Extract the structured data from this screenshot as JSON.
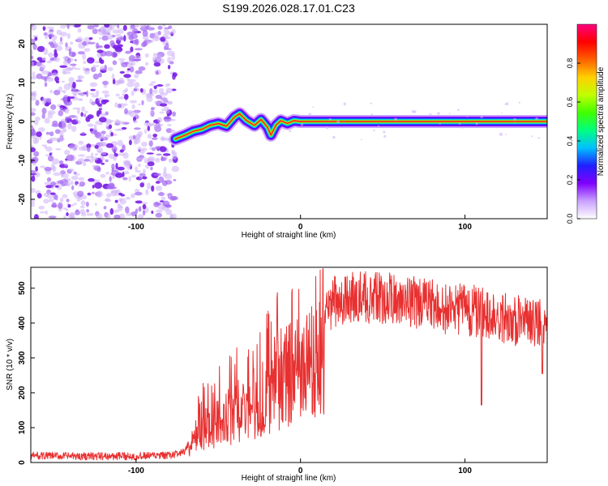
{
  "chart_data": [
    {
      "type": "heatmap",
      "title": "S199.2026.028.17.01.C23",
      "xlabel": "Height of straight line (km)",
      "ylabel": "Frequency (Hz)",
      "xlim": [
        -164,
        150
      ],
      "ylim": [
        -25,
        25
      ],
      "xticks": [
        -100,
        0,
        100
      ],
      "xtick_labels": [
        "-100",
        "0",
        "100"
      ],
      "yticks": [
        -20,
        -10,
        0,
        10,
        20
      ],
      "ytick_labels": [
        "-20",
        "-10",
        "0",
        "10",
        "20"
      ],
      "grid": false,
      "colorbar": {
        "label": "Normalized spectral amplitude",
        "range": [
          0,
          1
        ],
        "ticks": [
          0.0,
          0.2,
          0.4,
          0.6,
          0.8
        ],
        "tick_labels": [
          "0.0",
          "0.2",
          "0.4",
          "0.6",
          "0.8"
        ],
        "colors": [
          "#ffffff",
          "#c9a0ff",
          "#8000ff",
          "#2020ff",
          "#00c0ff",
          "#00ff80",
          "#40ff00",
          "#c0ff00",
          "#ffd000",
          "#ff6000",
          "#ff0000",
          "#ff0080"
        ]
      },
      "noise_region_x": [
        -164,
        -76
      ],
      "ridge_trace": {
        "x": [
          -76,
          -70,
          -65,
          -60,
          -55,
          -50,
          -45,
          -40,
          -37,
          -33,
          -28,
          -24,
          -20,
          -18,
          -15,
          -12,
          -8,
          -4,
          0,
          150
        ],
        "y": [
          -4.5,
          -3.5,
          -2.5,
          -2.0,
          -1.0,
          -0.5,
          -1.2,
          1.2,
          2.0,
          0.3,
          -1.0,
          0.5,
          -1.5,
          -3.5,
          -1.0,
          0.2,
          -0.5,
          0.2,
          0.0,
          0.0
        ]
      }
    },
    {
      "type": "line",
      "xlabel": "Height of straight line (km)",
      "ylabel": "SNR (10 * v/v)",
      "xlim": [
        -164,
        150
      ],
      "ylim": [
        0,
        560
      ],
      "xticks": [
        -100,
        0,
        100
      ],
      "xtick_labels": [
        "-100",
        "0",
        "100"
      ],
      "yticks": [
        0,
        100,
        200,
        300,
        400,
        500
      ],
      "ytick_labels": [
        "0",
        "100",
        "200",
        "300",
        "400",
        "500"
      ],
      "grid": false,
      "series": [
        {
          "name": "SNR",
          "color": "#e83030",
          "envelope_x": [
            -164,
            -140,
            -100,
            -80,
            -70,
            -65,
            -60,
            -55,
            -50,
            -45,
            -40,
            -35,
            -30,
            -25,
            -20,
            -15,
            -10,
            -5,
            0,
            10,
            20,
            30,
            40,
            50,
            60,
            70,
            80,
            90,
            100,
            110,
            120,
            130,
            140,
            150
          ],
          "envelope_y": [
            20,
            18,
            18,
            20,
            30,
            100,
            140,
            150,
            175,
            185,
            220,
            230,
            240,
            260,
            300,
            340,
            370,
            380,
            390,
            430,
            460,
            470,
            475,
            470,
            470,
            460,
            450,
            440,
            440,
            430,
            420,
            410,
            400,
            410
          ],
          "dips": [
            {
              "x": 110,
              "y": 165
            },
            {
              "x": 147,
              "y": 255
            }
          ]
        }
      ]
    }
  ]
}
